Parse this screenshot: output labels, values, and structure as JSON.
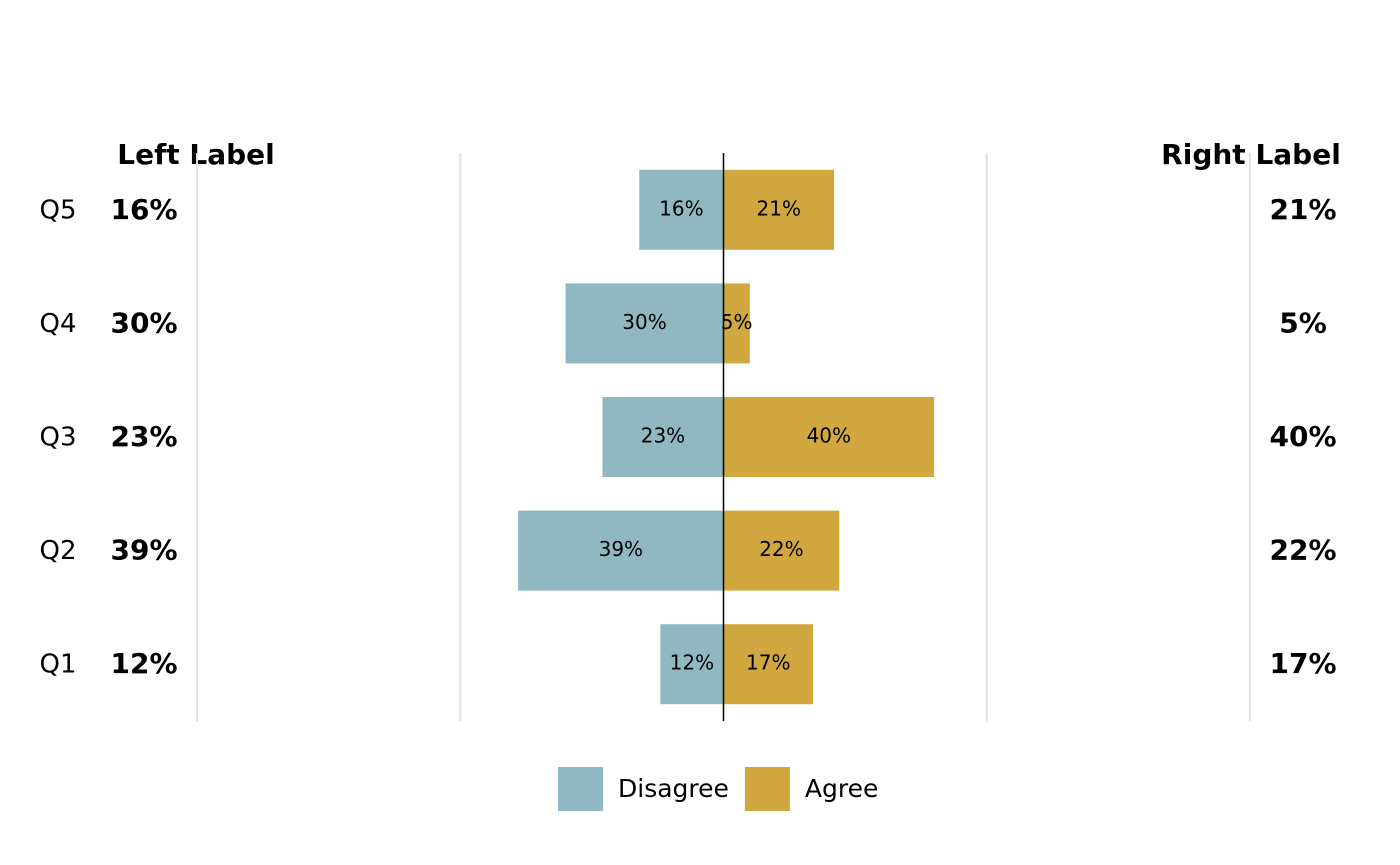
{
  "chart_data": {
    "type": "diverging-bar",
    "left_label": "Left Label",
    "right_label": "Right Label",
    "categories": [
      "Q1",
      "Q2",
      "Q3",
      "Q4",
      "Q5"
    ],
    "series": [
      {
        "name": "Disagree",
        "color": "#8fb8c2",
        "direction": "left",
        "values": [
          12,
          39,
          23,
          30,
          16
        ],
        "value_labels": [
          "12%",
          "39%",
          "23%",
          "30%",
          "16%"
        ]
      },
      {
        "name": "Agree",
        "color": "#d1a73f",
        "direction": "right",
        "values": [
          17,
          22,
          40,
          5,
          21
        ],
        "value_labels": [
          "17%",
          "22%",
          "40%",
          "5%",
          "21%"
        ]
      }
    ],
    "xlim": [
      -100,
      100
    ],
    "xticks": [
      -100,
      -50,
      0,
      50,
      100
    ],
    "grid": true,
    "legend": "bottom"
  }
}
